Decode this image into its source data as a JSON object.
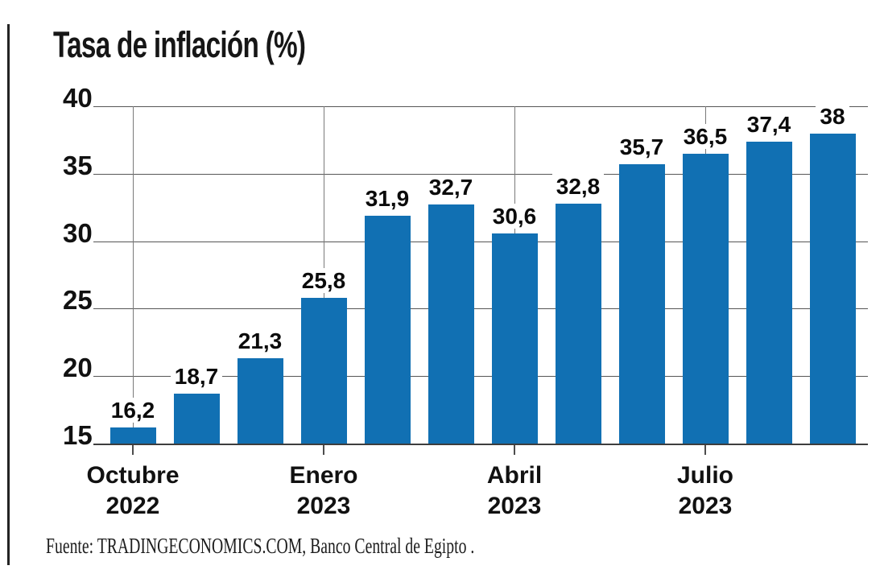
{
  "chart_data": {
    "type": "bar",
    "title": "Tasa de inflación (%)",
    "values": [
      16.2,
      18.7,
      21.3,
      25.8,
      31.9,
      32.7,
      30.6,
      32.8,
      35.7,
      36.5,
      37.4,
      38
    ],
    "bar_labels": [
      "16,2",
      "18,7",
      "21,3",
      "25,8",
      "31,9",
      "32,7",
      "30,6",
      "32,8",
      "35,7",
      "36,5",
      "37,4",
      "38"
    ],
    "y_ticks": [
      40,
      35,
      30,
      25,
      20,
      15
    ],
    "ylim": [
      15,
      40
    ],
    "x_ticks": [
      {
        "bar_index": 0,
        "lines": [
          "Octubre",
          "2022"
        ]
      },
      {
        "bar_index": 3,
        "lines": [
          "Enero",
          "2023"
        ]
      },
      {
        "bar_index": 6,
        "lines": [
          "Abril",
          "2023"
        ]
      },
      {
        "bar_index": 9,
        "lines": [
          "Julio",
          "2023"
        ]
      }
    ],
    "grid": true,
    "legend_position": "none",
    "colors": {
      "bar": "#1170b3",
      "gridline": "#565656",
      "axis_line": "#3d3d3d",
      "text": "#111111"
    }
  },
  "source": {
    "text": "Fuente: TRADINGECONOMICS.COM, Banco Central de Egipto ."
  }
}
